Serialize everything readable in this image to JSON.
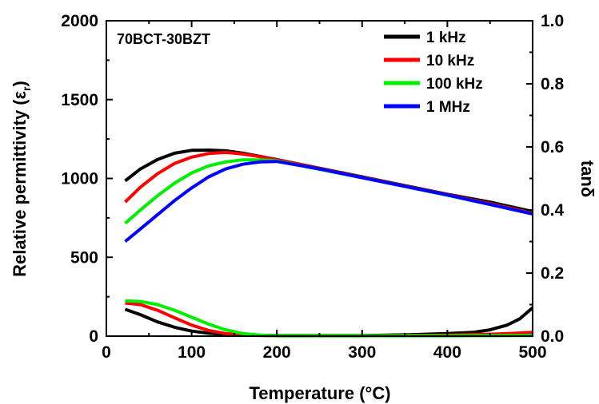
{
  "chart_data": {
    "type": "line",
    "annotation": "70BCT-30BZT",
    "xlabel": "Temperature (°C)",
    "ylabel_left_main": "Relative permittivity (ε",
    "ylabel_left_sub": "r",
    "ylabel_left_close": ")",
    "ylabel_right": "tanδ",
    "xlim": [
      0,
      500
    ],
    "ylim_left": [
      0,
      2000
    ],
    "ylim_right": [
      0,
      1.0
    ],
    "x_ticks": [
      0,
      100,
      200,
      300,
      400,
      500
    ],
    "x_tick_labels": [
      "0",
      "100",
      "200",
      "300",
      "400",
      "500"
    ],
    "y_left_ticks": [
      0,
      500,
      1000,
      1500,
      2000
    ],
    "y_left_tick_labels": [
      "0",
      "500",
      "1000",
      "1500",
      "2000"
    ],
    "y_right_ticks": [
      0,
      0.2,
      0.4,
      0.6,
      0.8,
      1.0
    ],
    "y_right_tick_labels": [
      "0.0",
      "0.2",
      "0.4",
      "0.6",
      "0.8",
      "1.0"
    ],
    "legend_position": "top-right",
    "series": [
      {
        "name": "1 kHz",
        "color": "#000000",
        "permittivity": [
          [
            22,
            985
          ],
          [
            40,
            1060
          ],
          [
            60,
            1120
          ],
          [
            80,
            1160
          ],
          [
            100,
            1178
          ],
          [
            120,
            1180
          ],
          [
            140,
            1175
          ],
          [
            160,
            1160
          ],
          [
            180,
            1140
          ],
          [
            200,
            1120
          ],
          [
            250,
            1065
          ],
          [
            300,
            1010
          ],
          [
            350,
            955
          ],
          [
            400,
            900
          ],
          [
            450,
            850
          ],
          [
            500,
            790
          ]
        ],
        "tan_delta": [
          [
            22,
            0.085
          ],
          [
            40,
            0.068
          ],
          [
            60,
            0.045
          ],
          [
            80,
            0.028
          ],
          [
            100,
            0.016
          ],
          [
            120,
            0.009
          ],
          [
            150,
            0.004
          ],
          [
            200,
            0.002
          ],
          [
            300,
            0.002
          ],
          [
            350,
            0.004
          ],
          [
            400,
            0.008
          ],
          [
            430,
            0.012
          ],
          [
            450,
            0.02
          ],
          [
            470,
            0.035
          ],
          [
            485,
            0.055
          ],
          [
            500,
            0.09
          ]
        ]
      },
      {
        "name": "10 kHz",
        "color": "#ff0000",
        "permittivity": [
          [
            22,
            850
          ],
          [
            40,
            945
          ],
          [
            60,
            1030
          ],
          [
            80,
            1095
          ],
          [
            100,
            1135
          ],
          [
            120,
            1158
          ],
          [
            140,
            1165
          ],
          [
            160,
            1155
          ],
          [
            180,
            1138
          ],
          [
            200,
            1118
          ],
          [
            250,
            1063
          ],
          [
            300,
            1008
          ],
          [
            350,
            952
          ],
          [
            400,
            897
          ],
          [
            450,
            840
          ],
          [
            500,
            780
          ]
        ],
        "tan_delta": [
          [
            22,
            0.105
          ],
          [
            40,
            0.1
          ],
          [
            60,
            0.082
          ],
          [
            80,
            0.058
          ],
          [
            100,
            0.035
          ],
          [
            120,
            0.018
          ],
          [
            140,
            0.008
          ],
          [
            160,
            0.003
          ],
          [
            200,
            0.001
          ],
          [
            300,
            0.001
          ],
          [
            400,
            0.003
          ],
          [
            450,
            0.006
          ],
          [
            480,
            0.009
          ],
          [
            500,
            0.012
          ]
        ]
      },
      {
        "name": "100 kHz",
        "color": "#00ee00",
        "permittivity": [
          [
            22,
            715
          ],
          [
            40,
            800
          ],
          [
            60,
            890
          ],
          [
            80,
            970
          ],
          [
            100,
            1035
          ],
          [
            120,
            1080
          ],
          [
            140,
            1105
          ],
          [
            160,
            1118
          ],
          [
            180,
            1118
          ],
          [
            200,
            1112
          ],
          [
            250,
            1058
          ],
          [
            300,
            1005
          ],
          [
            350,
            950
          ],
          [
            400,
            893
          ],
          [
            450,
            835
          ],
          [
            500,
            775
          ]
        ],
        "tan_delta": [
          [
            22,
            0.112
          ],
          [
            40,
            0.11
          ],
          [
            60,
            0.1
          ],
          [
            80,
            0.082
          ],
          [
            100,
            0.06
          ],
          [
            120,
            0.038
          ],
          [
            140,
            0.02
          ],
          [
            160,
            0.008
          ],
          [
            180,
            0.003
          ],
          [
            200,
            0.001
          ],
          [
            300,
            0.001
          ],
          [
            400,
            0.001
          ],
          [
            500,
            0.002
          ]
        ]
      },
      {
        "name": "1 MHz",
        "color": "#0000ff",
        "permittivity": [
          [
            22,
            600
          ],
          [
            40,
            680
          ],
          [
            60,
            770
          ],
          [
            80,
            860
          ],
          [
            100,
            940
          ],
          [
            120,
            1010
          ],
          [
            140,
            1060
          ],
          [
            160,
            1090
          ],
          [
            180,
            1105
          ],
          [
            200,
            1108
          ],
          [
            250,
            1060
          ],
          [
            300,
            1005
          ],
          [
            350,
            950
          ],
          [
            400,
            895
          ],
          [
            450,
            835
          ],
          [
            500,
            775
          ]
        ]
      }
    ]
  }
}
